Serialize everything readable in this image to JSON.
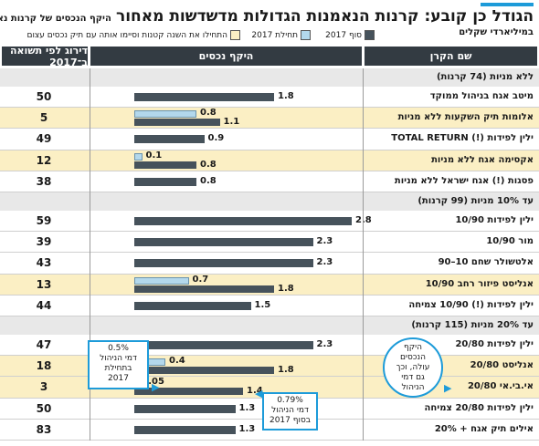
{
  "title": {
    "main": "הגודל כן קובע: קרנות הנאמנות הגדולות מדשדשות מאחור",
    "sub": "היקף הנכסים של קרנות נאמנות,",
    "sub2": "במיליארדי שקלים"
  },
  "legend": {
    "end_label": "סוף 2017",
    "start_label": "תחילת 2017",
    "note_label": "התחילו את השנה קטנות וסיימו אותה עם תיק נכסים עצום"
  },
  "colors": {
    "end": "#46525b",
    "start": "#b3d8ec",
    "highlight": "#fbefc4",
    "accent": "#1d9bd9",
    "header": "#333b42"
  },
  "headers": {
    "name": "שם הקרן",
    "assets": "היקף נכסים",
    "rank": "דירוג לפי תשואה ב־2017"
  },
  "callouts": {
    "start_fee": [
      "0.5%",
      "דמי הניהול",
      "בתחילת",
      "2017"
    ],
    "end_fee": [
      "0.79%",
      "דמי הניהול",
      "בסוף 2017"
    ],
    "circle": [
      "היקף",
      "הנכסים",
      "עולה, וכך",
      "גם דמי",
      "הניהול"
    ]
  },
  "chart_data": {
    "type": "bar",
    "units": "מיליארדי שקלים",
    "xlim": [
      0,
      3
    ],
    "sections": [
      {
        "label": "ללא מניות (74 קרנות)",
        "funds": [
          {
            "name": "מיטב אגח בניהול ממוקד",
            "end": 1.8,
            "start": null,
            "rank": "50",
            "highlight": false
          },
          {
            "name": "אלומות תיק השקעות ללא מניות",
            "end": 1.1,
            "start": 0.8,
            "rank": "5",
            "highlight": true
          },
          {
            "name": "ילין לפידות (!) TOTAL RETURN",
            "end": 0.9,
            "start": null,
            "rank": "49",
            "highlight": false
          },
          {
            "name": "אקסימה אגח ללא מניות",
            "end": 0.8,
            "start": 0.1,
            "rank": "12",
            "highlight": true
          },
          {
            "name": "פסגות (!) אגח ישראל ללא מניות",
            "end": 0.8,
            "start": null,
            "rank": "38",
            "highlight": false
          }
        ]
      },
      {
        "label": "עד 10% מניות (99 קרנות)",
        "funds": [
          {
            "name": "ילין לפידות 10/90",
            "end": 2.8,
            "start": null,
            "rank": "59",
            "highlight": false
          },
          {
            "name": "מור 10/90",
            "end": 2.3,
            "start": null,
            "rank": "39",
            "highlight": false
          },
          {
            "name": "אלטשולר שחם 10–90",
            "end": 2.3,
            "start": null,
            "rank": "43",
            "highlight": false
          },
          {
            "name": "אנליסט פיזור רחב 10/90",
            "end": 1.8,
            "start": 0.7,
            "rank": "13",
            "highlight": true
          },
          {
            "name": "ילין לפידות (!) 10/90 צמיחה",
            "end": 1.5,
            "start": null,
            "rank": "44",
            "highlight": false
          }
        ]
      },
      {
        "label": "עד 20% מניות (115 קרנות)",
        "funds": [
          {
            "name": "ילין לפידות 20/80",
            "end": 2.3,
            "start": null,
            "rank": "47",
            "highlight": false
          },
          {
            "name": "אנליסט 20/80",
            "end": 1.8,
            "start": 0.4,
            "rank": "18",
            "highlight": true
          },
          {
            "name": "אי.בי.אי 20/80",
            "end": 1.4,
            "start": 0.05,
            "rank": "3",
            "highlight": true
          },
          {
            "name": "ילין לפידות 20/80 צמיחה",
            "end": 1.3,
            "start": null,
            "rank": "50",
            "highlight": false
          },
          {
            "name": "אילים תיק אגח + 20%",
            "end": 1.3,
            "start": null,
            "rank": "83",
            "highlight": false
          }
        ]
      }
    ]
  }
}
